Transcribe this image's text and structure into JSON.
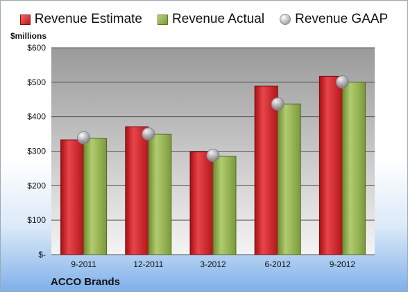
{
  "legend": {
    "estimate": "Revenue Estimate",
    "actual": "Revenue Actual",
    "gaap": "Revenue GAAP"
  },
  "units_label": "$millions",
  "company": "ACCO Brands",
  "colors": {
    "estimate": "#d0252a",
    "actual": "#8fae4b",
    "gaap": "#b9bcc2",
    "plot_bg_top": "#9a9a9a",
    "plot_bg_bottom": "#f4f4f4"
  },
  "chart_data": {
    "type": "bar",
    "categories": [
      "9-2011",
      "12-2011",
      "3-2012",
      "6-2012",
      "9-2012"
    ],
    "series": [
      {
        "name": "Revenue Estimate",
        "values": [
          333,
          371,
          298,
          489,
          517
        ]
      },
      {
        "name": "Revenue Actual",
        "values": [
          337,
          349,
          285,
          437,
          500
        ]
      },
      {
        "name": "Revenue GAAP",
        "values": [
          339,
          350,
          288,
          437,
          501
        ]
      }
    ],
    "yticks": [
      "$-",
      "$100",
      "$200",
      "$300",
      "$400",
      "$500",
      "$600"
    ],
    "ylabel": "$millions",
    "ylim": [
      0,
      600
    ],
    "grid": true,
    "legend_position": "top"
  }
}
